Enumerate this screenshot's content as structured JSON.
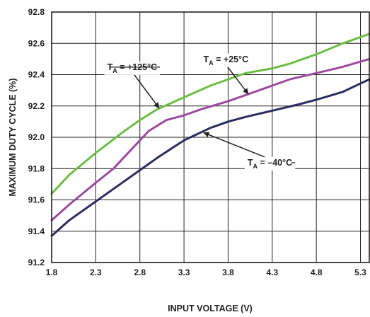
{
  "chart_data": {
    "type": "line",
    "xlabel": "INPUT VOLTAGE (V)",
    "ylabel": "MAXIMUM DUTY CYCLE (%)",
    "xlim": [
      1.8,
      5.4
    ],
    "ylim": [
      91.2,
      92.8
    ],
    "x_ticks": [
      "1.8",
      "2.3",
      "2.8",
      "3.3",
      "3.8",
      "4.3",
      "4.8",
      "5.3"
    ],
    "y_ticks": [
      "91.2",
      "91.4",
      "91.6",
      "91.8",
      "92.0",
      "92.2",
      "92.4",
      "92.6",
      "92.8"
    ],
    "grid": true,
    "series": [
      {
        "label_main": "T",
        "label_sub": "A",
        "label_rest": " = +125°C",
        "color": "#6cbd45",
        "x": [
          1.8,
          2.0,
          2.3,
          2.6,
          2.8,
          3.0,
          3.2,
          3.4,
          3.6,
          3.8,
          4.0,
          4.3,
          4.5,
          4.8,
          5.1,
          5.4
        ],
        "y": [
          91.64,
          91.76,
          91.9,
          92.03,
          92.11,
          92.18,
          92.23,
          92.28,
          92.33,
          92.37,
          92.41,
          92.44,
          92.47,
          92.53,
          92.6,
          92.66
        ]
      },
      {
        "label_main": "T",
        "label_sub": "A",
        "label_rest": " = +25°C",
        "color": "#9c4a9e",
        "x": [
          1.8,
          2.0,
          2.3,
          2.5,
          2.7,
          2.9,
          3.1,
          3.3,
          3.5,
          3.8,
          4.0,
          4.3,
          4.5,
          4.8,
          5.1,
          5.4
        ],
        "y": [
          91.47,
          91.57,
          91.71,
          91.8,
          91.92,
          92.04,
          92.11,
          92.14,
          92.18,
          92.23,
          92.27,
          92.33,
          92.37,
          92.41,
          92.45,
          92.5
        ]
      },
      {
        "label_main": "T",
        "label_sub": "A",
        "label_rest": " = –40°C",
        "color": "#2b2d5c",
        "x": [
          1.8,
          2.0,
          2.3,
          2.6,
          2.8,
          3.0,
          3.3,
          3.6,
          3.8,
          4.0,
          4.3,
          4.6,
          4.8,
          5.1,
          5.4
        ],
        "y": [
          91.37,
          91.47,
          91.59,
          91.71,
          91.79,
          91.87,
          91.98,
          92.06,
          92.1,
          92.13,
          92.17,
          92.21,
          92.24,
          92.29,
          92.37
        ]
      }
    ],
    "annotations": [
      {
        "series": 0,
        "text_x": 2.43,
        "text_y": 92.43,
        "arrow_x": 3.02,
        "arrow_y": 92.185,
        "line_to_x": 2.45
      },
      {
        "series": 1,
        "text_x": 3.52,
        "text_y": 92.48,
        "arrow_x": 4.03,
        "arrow_y": 92.275,
        "line_to_x": null
      },
      {
        "series": 2,
        "text_x": 4.02,
        "text_y": 91.82,
        "arrow_x": 3.52,
        "arrow_y": 92.03,
        "line_to_x": 4.52
      }
    ]
  }
}
